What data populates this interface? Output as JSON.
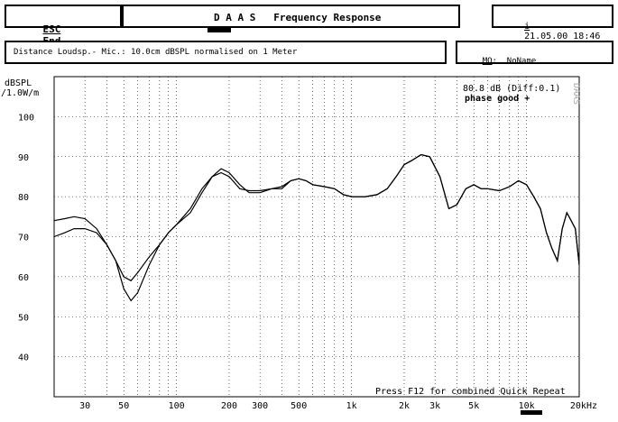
{
  "header": {
    "esc_key": "ESC",
    "esc_label": "End",
    "title": "D A A S   Frequency Response",
    "info_key": "i",
    "datetime": "21.05.00 18:46"
  },
  "subheader": {
    "description": "Distance Loudsp.- Mic.: 10.0cm dBSPL normalised on 1 Meter",
    "mo_key": "MO",
    "mo_value": "NoName"
  },
  "watermark": "DAAS",
  "status": {
    "level": "80.8 dB (Diff:0.1)",
    "phase": "phase good +"
  },
  "footer_hint": "Press F12 for combined Quick Repeat",
  "chart_data": {
    "type": "line",
    "ylabel": "dBSPL\n/1.0W/m",
    "xunit": "kHz",
    "xscale": "log",
    "xlim": [
      20,
      20000
    ],
    "ylim": [
      30,
      110
    ],
    "grid": true,
    "yticks": [
      40,
      50,
      60,
      70,
      80,
      90,
      100
    ],
    "xticks": [
      {
        "v": 30,
        "label": "30"
      },
      {
        "v": 50,
        "label": "50"
      },
      {
        "v": 100,
        "label": "100"
      },
      {
        "v": 200,
        "label": "200"
      },
      {
        "v": 300,
        "label": "300"
      },
      {
        "v": 500,
        "label": "500"
      },
      {
        "v": 1000,
        "label": "1k"
      },
      {
        "v": 2000,
        "label": "2k"
      },
      {
        "v": 3000,
        "label": "3k"
      },
      {
        "v": 5000,
        "label": "5k"
      },
      {
        "v": 10000,
        "label": "10k"
      },
      {
        "v": 20000,
        "label": "20kHz"
      }
    ],
    "series": [
      {
        "x": [
          20,
          23,
          26,
          30,
          35,
          40,
          45,
          50,
          55,
          60,
          70,
          80,
          90,
          100,
          120,
          140,
          160,
          180,
          200,
          230,
          260,
          300,
          350,
          400,
          450,
          500,
          550,
          600,
          700,
          800,
          900,
          1000,
          1200,
          1400,
          1600,
          1800,
          2000,
          2200,
          2500,
          2800,
          3200,
          3600,
          4000,
          4500,
          5000,
          5500,
          6000,
          7000,
          8000,
          9000,
          10000,
          11000,
          12000,
          13000,
          14000,
          15000,
          16000,
          17000,
          18000,
          19000,
          20000
        ],
        "y": [
          74,
          74.5,
          75,
          74.5,
          72,
          68,
          64,
          57,
          54,
          56,
          63,
          68,
          71,
          73,
          77,
          82,
          85,
          87,
          86,
          83,
          81,
          81,
          82,
          82,
          84,
          84.5,
          84,
          83,
          82.5,
          82,
          80.5,
          80,
          80,
          80.5,
          82,
          85,
          88,
          89,
          90.5,
          90,
          85,
          77,
          78,
          82,
          83,
          82,
          82,
          81.5,
          82.5,
          84,
          83,
          80,
          77,
          71,
          67,
          64,
          72,
          76,
          74,
          72,
          63
        ]
      },
      {
        "x": [
          20,
          23,
          26,
          30,
          35,
          40,
          45,
          50,
          55,
          60,
          70,
          80,
          90,
          100,
          120,
          140,
          160,
          180,
          200,
          230,
          260,
          300,
          350,
          400,
          450,
          500,
          550,
          600,
          700,
          800,
          900,
          1000,
          1200,
          1400,
          1600,
          1800,
          2000,
          2200,
          2500,
          2800,
          3200,
          3600,
          4000,
          4500,
          5000,
          5500,
          6000,
          7000,
          8000,
          9000,
          10000,
          11000,
          12000,
          13000,
          14000,
          15000,
          16000,
          17000,
          18000,
          19000,
          20000
        ],
        "y": [
          70,
          71,
          72,
          72,
          71,
          68,
          64,
          60,
          59,
          61,
          65,
          68,
          71,
          73,
          76,
          81,
          85,
          86,
          85,
          82,
          81.5,
          81.5,
          82,
          82.5,
          84,
          84.5,
          84,
          83,
          82.5,
          82,
          80.5,
          80,
          80,
          80.5,
          82,
          85,
          88,
          89,
          90.5,
          90,
          85,
          77,
          78,
          82,
          83,
          82,
          82,
          81.5,
          82.5,
          84,
          83,
          80,
          77,
          71,
          67,
          64,
          72,
          76,
          74,
          72,
          63
        ]
      }
    ]
  }
}
